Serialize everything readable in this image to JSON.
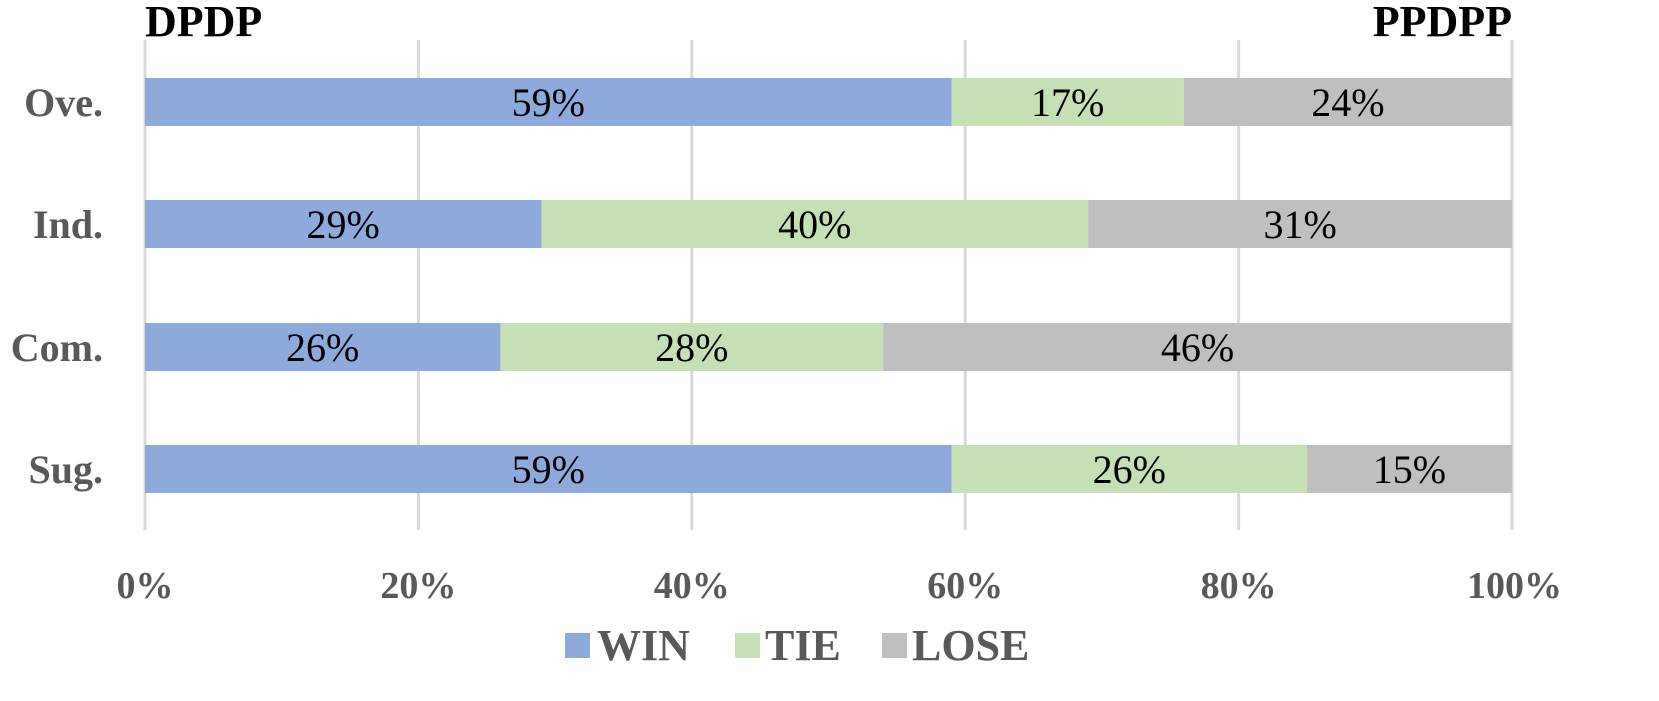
{
  "chart_data": {
    "type": "bar",
    "orientation": "horizontal",
    "stacked": "percent",
    "left_title": "DPDP",
    "right_title": "PPDPP",
    "categories": [
      "Ove.",
      "Ind.",
      "Com.",
      "Sug."
    ],
    "series": [
      {
        "name": "WIN",
        "color": "#8eaadb",
        "values": [
          59,
          29,
          26,
          59
        ]
      },
      {
        "name": "TIE",
        "color": "#c5e0b4",
        "values": [
          17,
          40,
          28,
          26
        ]
      },
      {
        "name": "LOSE",
        "color": "#bfbfbf",
        "values": [
          24,
          31,
          46,
          15
        ]
      }
    ],
    "data_labels": [
      [
        "59%",
        "17%",
        "24%"
      ],
      [
        "29%",
        "40%",
        "31%"
      ],
      [
        "26%",
        "28%",
        "46%"
      ],
      [
        "59%",
        "26%",
        "15%"
      ]
    ],
    "xlim": [
      0,
      100
    ],
    "x_ticks": [
      "0%",
      "20%",
      "40%",
      "60%",
      "80%",
      "100%"
    ],
    "grid": true,
    "legend_position": "bottom"
  }
}
